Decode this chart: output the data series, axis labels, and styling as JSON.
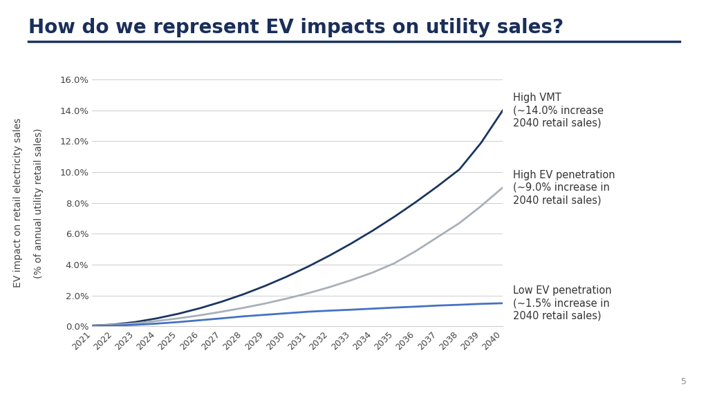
{
  "title": "How do we represent EV impacts on utility sales?",
  "title_color": "#1a2e5a",
  "title_fontsize": 20,
  "ylabel_line1": "EV impact on retail electricity sales",
  "ylabel_line2": "(% of annual utility retail sales)",
  "ylabel_fontsize": 10,
  "background_color": "#ffffff",
  "years": [
    2021,
    2022,
    2023,
    2024,
    2025,
    2026,
    2027,
    2028,
    2029,
    2030,
    2031,
    2032,
    2033,
    2034,
    2035,
    2036,
    2037,
    2038,
    2039,
    2040
  ],
  "high_vmt": [
    0.05,
    0.12,
    0.28,
    0.52,
    0.82,
    1.18,
    1.6,
    2.08,
    2.62,
    3.22,
    3.88,
    4.6,
    5.38,
    6.22,
    7.12,
    8.08,
    9.1,
    10.18,
    11.9,
    14.0
  ],
  "high_ev": [
    0.05,
    0.1,
    0.2,
    0.35,
    0.52,
    0.72,
    0.95,
    1.2,
    1.48,
    1.8,
    2.15,
    2.55,
    3.0,
    3.5,
    4.1,
    4.9,
    5.8,
    6.7,
    7.8,
    9.0
  ],
  "low_ev": [
    0.02,
    0.05,
    0.1,
    0.18,
    0.28,
    0.4,
    0.52,
    0.65,
    0.75,
    0.85,
    0.95,
    1.02,
    1.08,
    1.15,
    1.22,
    1.28,
    1.35,
    1.4,
    1.46,
    1.5
  ],
  "color_high_vmt": "#1a3560",
  "color_high_ev": "#a8b0b8",
  "color_low_ev": "#4472c4",
  "line_width": 2.0,
  "ylim": [
    0,
    16
  ],
  "yticks": [
    0.0,
    2.0,
    4.0,
    6.0,
    8.0,
    10.0,
    12.0,
    14.0,
    16.0
  ],
  "ytick_labels": [
    "0.0%",
    "2.0%",
    "4.0%",
    "6.0%",
    "8.0%",
    "10.0%",
    "12.0%",
    "14.0%",
    "16.0%"
  ],
  "annotation_high_vmt_1": "High VMT",
  "annotation_high_vmt_2": "(~14.0% increase",
  "annotation_high_vmt_3": "2040 retail sales)",
  "annotation_high_ev_1": "High EV penetration",
  "annotation_high_ev_2": "(~9.0% increase in",
  "annotation_high_ev_3": "2040 retail sales)",
  "annotation_low_ev_1": "Low EV penetration",
  "annotation_low_ev_2": "(~1.5% increase in",
  "annotation_low_ev_3": "2040 retail sales)",
  "annotation_fontsize": 10.5,
  "separator_color": "#1a3560",
  "page_number": "5"
}
